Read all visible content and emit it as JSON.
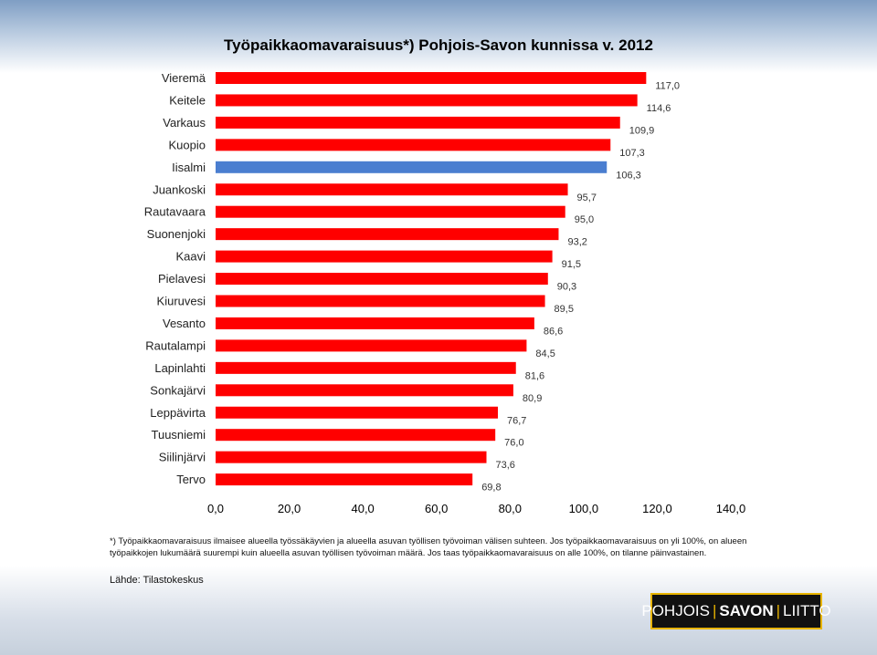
{
  "chart_data": {
    "type": "bar",
    "orientation": "horizontal",
    "title": "Työpaikkaomavaraisuus*) Pohjois-Savon kunnissa v. 2012",
    "categories": [
      "Vieremä",
      "Keitele",
      "Varkaus",
      "Kuopio",
      "Iisalmi",
      "Juankoski",
      "Rautavaara",
      "Suonenjoki",
      "Kaavi",
      "Pielavesi",
      "Kiuruvesi",
      "Vesanto",
      "Rautalampi",
      "Lapinlahti",
      "Sonkajärvi",
      "Leppävirta",
      "Tuusniemi",
      "Siilinjärvi",
      "Tervo"
    ],
    "values": [
      117.0,
      114.6,
      109.9,
      107.3,
      106.3,
      95.7,
      95.0,
      93.2,
      91.5,
      90.3,
      89.5,
      86.6,
      84.5,
      81.6,
      80.9,
      76.7,
      76.0,
      73.6,
      69.8
    ],
    "value_labels": [
      "117,0",
      "114,6",
      "109,9",
      "107,3",
      "106,3",
      "95,7",
      "95,0",
      "93,2",
      "91,5",
      "90,3",
      "89,5",
      "86,6",
      "84,5",
      "81,6",
      "80,9",
      "76,7",
      "76,0",
      "73,6",
      "69,8"
    ],
    "highlight_category": "Iisalmi",
    "colors": {
      "bar": "#ff0000",
      "highlight": "#4a7ed0"
    },
    "xlim": [
      0,
      140
    ],
    "x_ticks": [
      0,
      20,
      40,
      60,
      80,
      100,
      120,
      140
    ],
    "x_tick_labels": [
      "0,0",
      "20,0",
      "40,0",
      "60,0",
      "80,0",
      "100,0",
      "120,0",
      "140,0"
    ],
    "xlabel": "",
    "ylabel": "",
    "grid": false,
    "legend": "none"
  },
  "footnote": "*) Työpaikkaomavaraisuus ilmaisee alueella työssäkäyvien ja alueella asuvan työllisen työvoiman välisen suhteen. Jos työpaikkaomavaraisuus on yli 100%, on alueen työpaikkojen lukumäärä suurempi kuin alueella asuvan työllisen työvoiman määrä. Jos taas työpaikkaomavaraisuus on alle 100%, on tilanne päinvastainen.",
  "source": "Lähde: Tilastokeskus",
  "logo": {
    "part1": "POHJOIS",
    "divider": "|",
    "part2": "SAVON",
    "part3": "LIITTO"
  }
}
